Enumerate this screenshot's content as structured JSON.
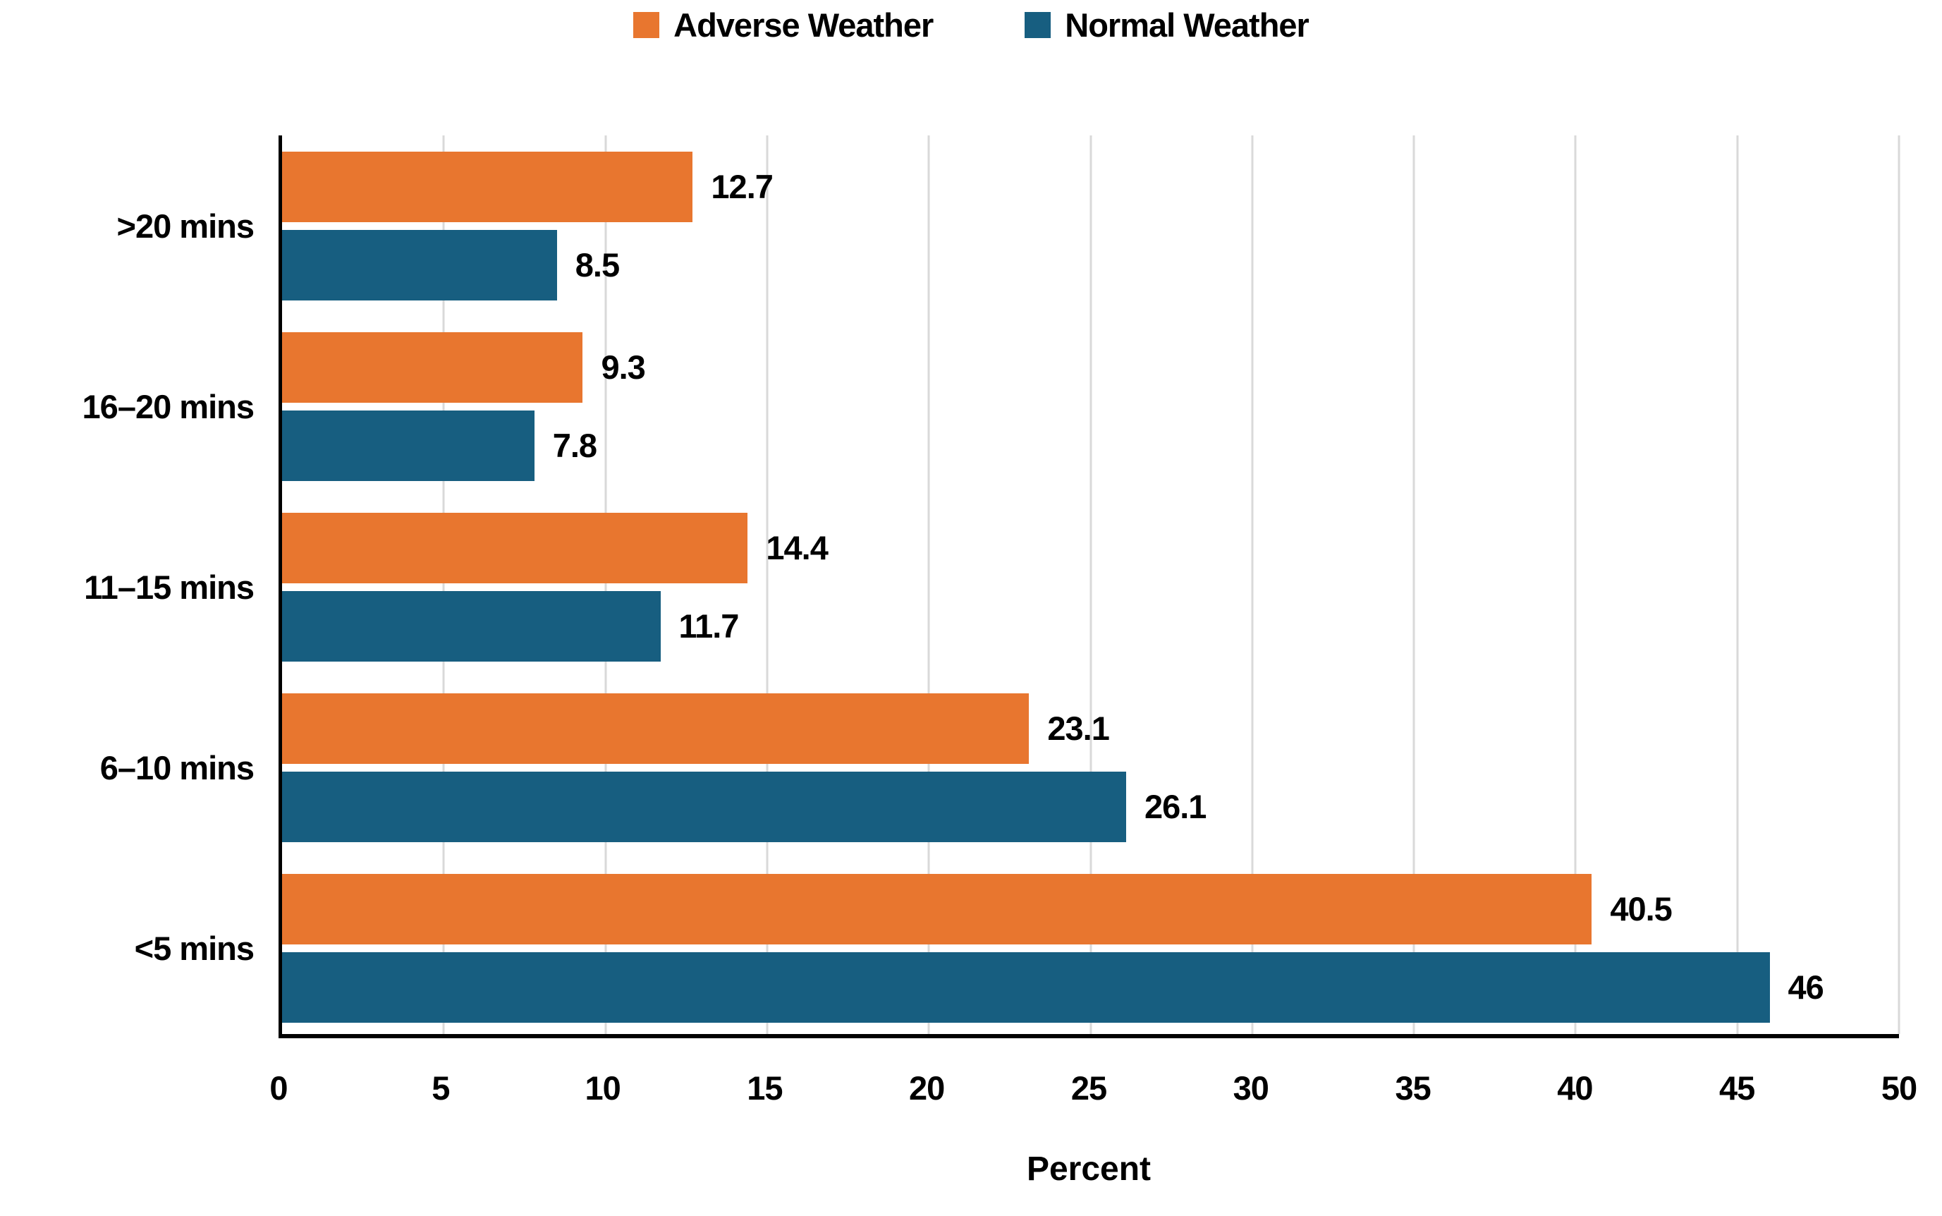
{
  "chart_data": {
    "type": "bar",
    "orientation": "horizontal",
    "categories": [
      ">20 mins",
      "16–20 mins",
      "11–15 mins",
      "6–10 mins",
      "<5 mins"
    ],
    "series": [
      {
        "name": "Adverse Weather",
        "color": "#E8762F",
        "values": [
          12.7,
          9.3,
          14.4,
          23.1,
          40.5
        ]
      },
      {
        "name": "Normal Weather",
        "color": "#175E80",
        "values": [
          8.5,
          7.8,
          11.7,
          26.1,
          46
        ]
      }
    ],
    "data_labels": [
      [
        "12.7",
        "9.3",
        "14.4",
        "23.1",
        "40.5"
      ],
      [
        "8.5",
        "7.8",
        "11.7",
        "26.1",
        "46"
      ]
    ],
    "title": "",
    "xlabel": "Percent",
    "ylabel": "",
    "xlim": [
      0,
      50
    ],
    "x_ticks": [
      "0",
      "5",
      "10",
      "15",
      "20",
      "25",
      "30",
      "35",
      "40",
      "45",
      "50"
    ],
    "grid": "vertical",
    "gridline_color": "#d9d9d9",
    "axis_color": "#000000",
    "legend_position": "top"
  }
}
